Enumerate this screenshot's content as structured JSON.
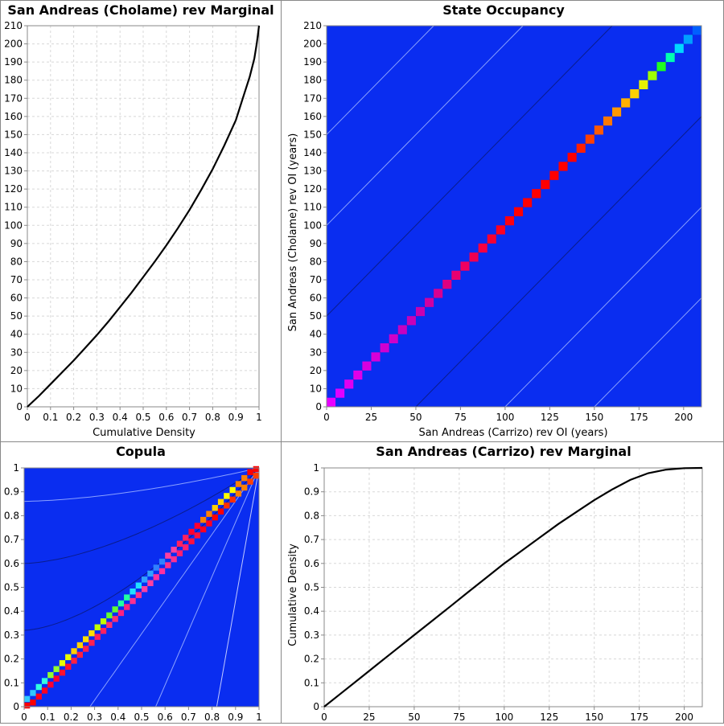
{
  "chart_data": [
    {
      "id": "cholame-marginal",
      "type": "line",
      "title": "San Andreas (Cholame) rev Marginal",
      "xlabel": "Cumulative Density",
      "ylabel": "",
      "xlim": [
        0,
        1
      ],
      "ylim": [
        0,
        210
      ],
      "xticks": [
        0,
        0.1,
        0.2,
        0.3,
        0.4,
        0.5,
        0.6,
        0.7,
        0.8,
        0.9,
        1
      ],
      "yticks": [
        0,
        10,
        20,
        30,
        40,
        50,
        60,
        70,
        80,
        90,
        100,
        110,
        120,
        130,
        140,
        150,
        160,
        170,
        180,
        190,
        200,
        210
      ],
      "grid": true,
      "series": [
        {
          "color": "#000000",
          "points": [
            [
              0,
              0
            ],
            [
              0.05,
              6
            ],
            [
              0.1,
              12.5
            ],
            [
              0.15,
              19
            ],
            [
              0.2,
              25.5
            ],
            [
              0.25,
              32.5
            ],
            [
              0.3,
              39.5
            ],
            [
              0.35,
              47
            ],
            [
              0.4,
              55
            ],
            [
              0.45,
              63
            ],
            [
              0.5,
              71.5
            ],
            [
              0.55,
              80
            ],
            [
              0.6,
              89
            ],
            [
              0.65,
              98.5
            ],
            [
              0.7,
              108.5
            ],
            [
              0.75,
              119.5
            ],
            [
              0.8,
              131
            ],
            [
              0.85,
              144
            ],
            [
              0.9,
              158
            ],
            [
              0.93,
              170
            ],
            [
              0.96,
              182
            ],
            [
              0.98,
              192
            ],
            [
              0.99,
              200
            ],
            [
              0.995,
              205
            ],
            [
              1,
              210
            ]
          ]
        }
      ]
    },
    {
      "id": "state-occupancy",
      "type": "heatmap",
      "title": "State Occupancy",
      "xlabel": "San Andreas (Carrizo) rev OI (years)",
      "ylabel": "San Andreas (Cholame) rev OI (years)",
      "xlim": [
        0,
        210
      ],
      "ylim": [
        0,
        210
      ],
      "xticks": [
        0,
        25,
        50,
        75,
        100,
        125,
        150,
        175,
        200
      ],
      "yticks": [
        0,
        10,
        20,
        30,
        40,
        50,
        60,
        70,
        80,
        90,
        100,
        110,
        120,
        130,
        140,
        150,
        160,
        170,
        180,
        190,
        200,
        210
      ],
      "background_color": "#0a2df0",
      "diagonal_cells": {
        "start": 2.5,
        "step": 5,
        "count": 42,
        "colors": [
          "#e800ff",
          "#e000ff",
          "#e000f0",
          "#e000e8",
          "#d800e0",
          "#d800d8",
          "#d000d0",
          "#d000c8",
          "#c800c0",
          "#c800b8",
          "#c800b0",
          "#d000a0",
          "#d80090",
          "#e00080",
          "#e80070",
          "#f00060",
          "#f00050",
          "#f80040",
          "#f80030",
          "#ff0020",
          "#ff0010",
          "#ff0000",
          "#ff0000",
          "#ff0000",
          "#ff0000",
          "#ff0000",
          "#ff0000",
          "#ff0000",
          "#ff2000",
          "#ff4000",
          "#ff5a00",
          "#ff7800",
          "#ff9800",
          "#ffb000",
          "#ffd000",
          "#e8f000",
          "#a0ff00",
          "#20ff20",
          "#00ffb0",
          "#00d8ff",
          "#00a0ff",
          "#0060ff"
        ]
      },
      "contours": [
        {
          "offset": 0,
          "color": "#0a1c8c"
        },
        {
          "offset": 50,
          "color": "#0a1c8c"
        },
        {
          "offset": -50,
          "color": "#0a1c8c"
        },
        {
          "offset": 100,
          "color": "#8aa0ff"
        },
        {
          "offset": -100,
          "color": "#8aa0ff"
        },
        {
          "offset": 150,
          "color": "#8aa0ff"
        },
        {
          "offset": -150,
          "color": "#8aa0ff"
        }
      ]
    },
    {
      "id": "copula",
      "type": "heatmap",
      "title": "Copula",
      "xlabel": "",
      "ylabel": "",
      "xlim": [
        0,
        1
      ],
      "ylim": [
        0,
        1
      ],
      "xticks": [
        0,
        0.1,
        0.2,
        0.3,
        0.4,
        0.5,
        0.6,
        0.7,
        0.8,
        0.9,
        1
      ],
      "yticks": [
        0,
        0.1,
        0.2,
        0.3,
        0.4,
        0.5,
        0.6,
        0.7,
        0.8,
        0.9,
        1
      ],
      "background_color": "#0a2df0",
      "bands": [
        {
          "offset": 0.02,
          "colors": [
            "#30c8ff",
            "#30ffe0",
            "#90ff30",
            "#e8ff00",
            "#ffd000",
            "#ffe000",
            "#c0ff00",
            "#60ff30",
            "#20ffa0",
            "#20e0ff",
            "#30a0ff",
            "#3080ff",
            "#ff40a0",
            "#ff2060",
            "#ff0030",
            "#ff8000",
            "#ffd000",
            "#ffff00",
            "#ff8000",
            "#ff0000"
          ]
        },
        {
          "offset": -0.02,
          "colors": [
            "#ff0000",
            "#ff0020",
            "#ff0030",
            "#ff1030",
            "#ff2040",
            "#ff2050",
            "#ff2060",
            "#ff3070",
            "#ff2080",
            "#ff3090",
            "#ff40a0",
            "#ff30a0",
            "#ff3090",
            "#ff2070",
            "#ff1040",
            "#ff0020",
            "#ff0000",
            "#ff3000",
            "#ff8000",
            "#ff4000"
          ]
        }
      ],
      "contour_colors": [
        "#8aa0ff",
        "#0a1c8c",
        "#0a1c8c",
        "#8aa0ff",
        "#8aa0ff",
        "#c0c8ff"
      ]
    },
    {
      "id": "carrizo-marginal",
      "type": "line",
      "title": "San Andreas (Carrizo) rev Marginal",
      "xlabel": "",
      "ylabel": "Cumulative Density",
      "xlim": [
        0,
        210
      ],
      "ylim": [
        0,
        1
      ],
      "xticks": [
        0,
        25,
        50,
        75,
        100,
        125,
        150,
        175,
        200
      ],
      "yticks": [
        0,
        0.1,
        0.2,
        0.3,
        0.4,
        0.5,
        0.6,
        0.7,
        0.8,
        0.9,
        1
      ],
      "grid": true,
      "series": [
        {
          "color": "#000000",
          "points": [
            [
              0,
              0
            ],
            [
              10,
              0.06
            ],
            [
              20,
              0.12
            ],
            [
              30,
              0.18
            ],
            [
              40,
              0.24
            ],
            [
              50,
              0.3
            ],
            [
              60,
              0.36
            ],
            [
              70,
              0.42
            ],
            [
              80,
              0.48
            ],
            [
              90,
              0.54
            ],
            [
              100,
              0.6
            ],
            [
              110,
              0.655
            ],
            [
              120,
              0.71
            ],
            [
              130,
              0.765
            ],
            [
              140,
              0.815
            ],
            [
              150,
              0.865
            ],
            [
              160,
              0.91
            ],
            [
              170,
              0.95
            ],
            [
              180,
              0.978
            ],
            [
              190,
              0.993
            ],
            [
              200,
              0.999
            ],
            [
              210,
              1
            ]
          ]
        }
      ]
    }
  ]
}
